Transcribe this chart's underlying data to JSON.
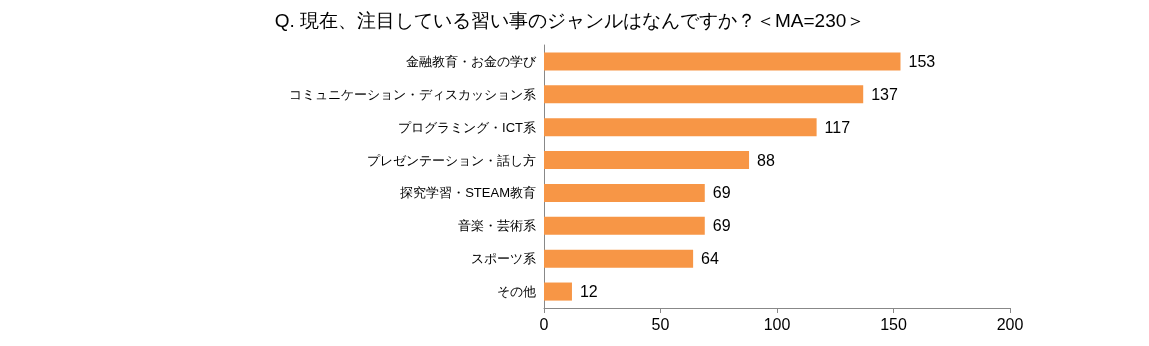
{
  "chart_data": {
    "type": "bar",
    "orientation": "horizontal",
    "title": "Q. 現在、注目している習い事のジャンルはなんですか？＜MA=230＞",
    "categories": [
      "金融教育・お金の学び",
      "コミュニケーション・ディスカッション系",
      "プログラミング・ICT系",
      "プレゼンテーション・話し方",
      "探究学習・STEAM教育",
      "音楽・芸術系",
      "スポーツ系",
      "その他"
    ],
    "values": [
      153,
      137,
      117,
      88,
      69,
      69,
      64,
      12
    ],
    "color": "#f79646",
    "xlim": [
      0,
      200
    ],
    "xticks": [
      0,
      50,
      100,
      150,
      200
    ],
    "data_labels": true
  }
}
